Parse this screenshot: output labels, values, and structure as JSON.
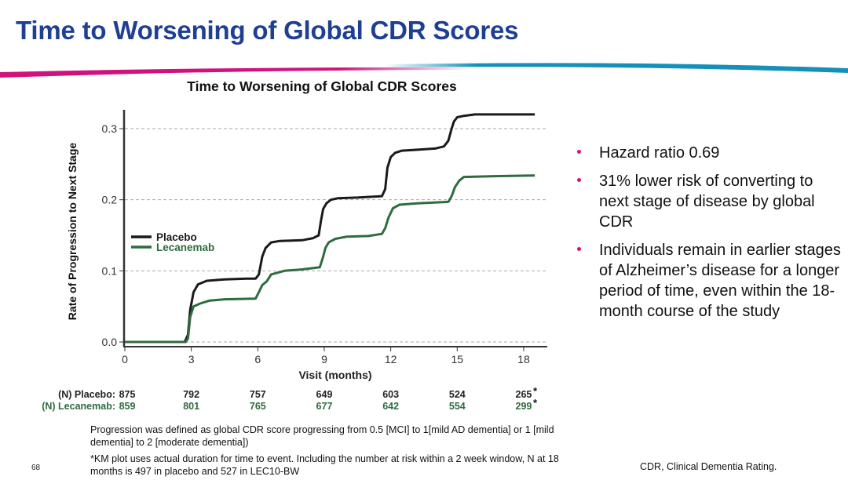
{
  "slide": {
    "title": "Time to Worsening of Global CDR Scores",
    "page_number": "68",
    "accent_colors": {
      "title": "#1f3f93",
      "swoosh_left": "#d1117e",
      "swoosh_right": "#1590b8",
      "bullet": "#d1117e"
    }
  },
  "bullets": [
    "Hazard ratio 0.69",
    "31% lower risk of converting to next stage of disease by global CDR",
    "Individuals remain in earlier stages of Alzheimer’s disease for a longer period of time, even within the 18-month course of the study"
  ],
  "risk_table": {
    "rows": [
      {
        "label": "(N) Placebo:",
        "values": [
          "875",
          "792",
          "757",
          "649",
          "603",
          "524",
          "265"
        ],
        "color": "#222222"
      },
      {
        "label": "(N) Lecanemab:",
        "values": [
          "859",
          "801",
          "765",
          "677",
          "642",
          "554",
          "299"
        ],
        "color": "#2e6b3f"
      }
    ],
    "last_marker": "*"
  },
  "footnotes": {
    "definition": "Progression was defined as global CDR score progressing from 0.5 [MCI] to 1[mild AD dementia] or 1 [mild dementia] to 2 [moderate dementia])",
    "km_note": "*KM plot uses actual duration for time to event. Including the number at risk  within a 2 week window, N at 18 months is 497 in placebo and 527 in LEC10-BW",
    "abbreviation": "CDR, Clinical Dementia Rating."
  },
  "chart_data": {
    "type": "line",
    "title": "Time to Worsening of Global CDR Scores",
    "xlabel": "Visit (months)",
    "ylabel": "Rate of Progression to Next Stage",
    "xlim": [
      0,
      18.5
    ],
    "ylim": [
      0,
      0.32
    ],
    "xticks": [
      0,
      3,
      6,
      9,
      12,
      15,
      18
    ],
    "xtick_labels": [
      "0",
      "3",
      "6",
      "9",
      "12",
      "15",
      "18"
    ],
    "yticks": [
      0.0,
      0.1,
      0.2,
      0.3
    ],
    "ytick_labels": [
      "0.0",
      "0.1",
      "0.2",
      "0.3"
    ],
    "grid": "horizontal dashed",
    "legend": {
      "placement": "middle-left",
      "entries": [
        "Placebo",
        "Lecanemab"
      ]
    },
    "series": [
      {
        "name": "Placebo",
        "color": "#1a1a1a",
        "x": [
          0,
          2.7,
          2.85,
          2.95,
          3.1,
          3.3,
          3.7,
          4.5,
          5.5,
          5.9,
          6.05,
          6.2,
          6.35,
          6.6,
          7.0,
          8.0,
          8.5,
          8.75,
          8.85,
          8.95,
          9.1,
          9.3,
          9.6,
          10.5,
          11.6,
          11.75,
          11.85,
          12.0,
          12.2,
          12.5,
          13.0,
          14.0,
          14.4,
          14.6,
          14.75,
          14.85,
          15.0,
          15.3,
          15.8,
          17.0,
          18.5
        ],
        "y": [
          0,
          0,
          0.01,
          0.045,
          0.07,
          0.081,
          0.086,
          0.088,
          0.089,
          0.089,
          0.095,
          0.12,
          0.132,
          0.14,
          0.142,
          0.143,
          0.146,
          0.15,
          0.17,
          0.187,
          0.195,
          0.2,
          0.202,
          0.203,
          0.205,
          0.215,
          0.245,
          0.26,
          0.266,
          0.269,
          0.27,
          0.272,
          0.275,
          0.283,
          0.3,
          0.31,
          0.316,
          0.318,
          0.32,
          0.32,
          0.32
        ]
      },
      {
        "name": "Lecanemab",
        "color": "#2e6b3f",
        "x": [
          0,
          2.75,
          2.85,
          2.95,
          3.1,
          3.4,
          3.8,
          4.5,
          5.9,
          6.05,
          6.2,
          6.4,
          6.6,
          7.2,
          8.0,
          8.8,
          8.95,
          9.05,
          9.2,
          9.5,
          10.0,
          11.0,
          11.6,
          11.75,
          11.9,
          12.1,
          12.4,
          13.2,
          14.6,
          14.75,
          14.9,
          15.1,
          15.3,
          16.5,
          18.5
        ],
        "y": [
          0,
          0,
          0.005,
          0.035,
          0.05,
          0.054,
          0.058,
          0.06,
          0.061,
          0.07,
          0.08,
          0.085,
          0.095,
          0.1,
          0.102,
          0.105,
          0.12,
          0.132,
          0.14,
          0.145,
          0.148,
          0.149,
          0.152,
          0.16,
          0.175,
          0.188,
          0.193,
          0.195,
          0.197,
          0.205,
          0.218,
          0.227,
          0.232,
          0.233,
          0.234
        ]
      }
    ]
  }
}
